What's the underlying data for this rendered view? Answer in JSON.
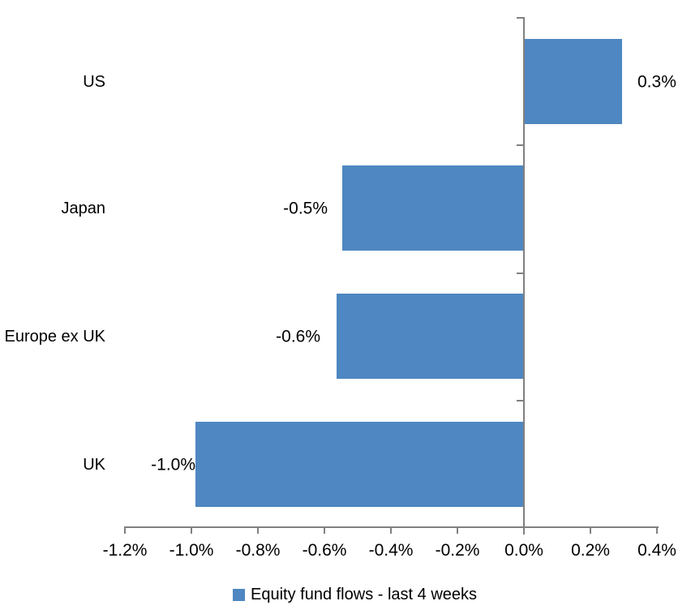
{
  "chart_data": {
    "type": "bar",
    "orientation": "horizontal",
    "categories": [
      "US",
      "Japan",
      "Europe ex UK",
      "UK"
    ],
    "values": [
      0.3,
      -0.5,
      -0.6,
      -1.0
    ],
    "plotted_values": [
      0.295,
      -0.546,
      -0.563,
      -0.988
    ],
    "data_labels": [
      "0.3%",
      "-0.5%",
      "-0.6%",
      "-1.0%"
    ],
    "series_name": "Equity fund flows - last 4 weeks",
    "x_ticks": [
      "-1.2%",
      "-1.0%",
      "-0.8%",
      "-0.6%",
      "-0.4%",
      "-0.2%",
      "0.0%",
      "0.2%",
      "0.4%"
    ],
    "x_tick_values": [
      -1.2,
      -1.0,
      -0.8,
      -0.6,
      -0.4,
      -0.2,
      0.0,
      0.2,
      0.4
    ],
    "xlim": [
      -1.2,
      0.4
    ],
    "unit": "%",
    "grid": false,
    "legend_position": "bottom-center",
    "bar_color": "#4E87C1",
    "axis_color": "#808080",
    "text_color": "#000000"
  }
}
